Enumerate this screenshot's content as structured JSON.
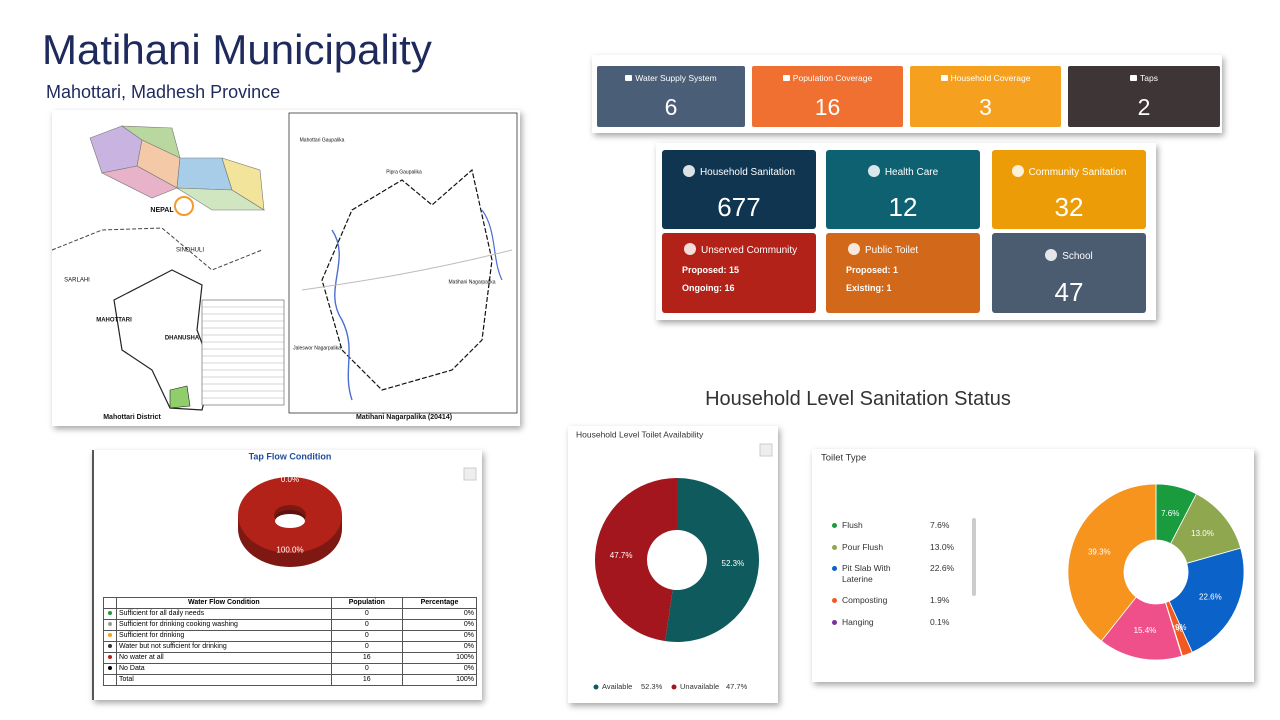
{
  "header": {
    "title": "Matihani Municipality",
    "subtitle": "Mahottari, Madhesh Province"
  },
  "map": {
    "labels": [
      "NEPAL",
      "SINDHULI",
      "SARLAHI",
      "MAHOTTARI",
      "DHANUSHA",
      "Mahottari District",
      "Matihani Nagarpalika (20414)",
      "Pipra Gaupalika",
      "Jaleswor Nagarpalika",
      "Matihani Nagarpalika",
      "Mahottari Gaupalika"
    ]
  },
  "summary": {
    "items": [
      {
        "label": "Water Supply System",
        "value": 6,
        "color": "#4a5e78"
      },
      {
        "label": "Population Coverage",
        "value": 16,
        "color": "#ef7030"
      },
      {
        "label": "Household Coverage",
        "value": 3,
        "color": "#f5a11f"
      },
      {
        "label": "Taps",
        "value": 2,
        "color": "#3d3536"
      }
    ]
  },
  "sanitation": {
    "items": [
      {
        "label": "Household Sanitation",
        "value": 677,
        "color": "#0f3550"
      },
      {
        "label": "Health Care",
        "value": 12,
        "color": "#0d6171"
      },
      {
        "label": "Community Sanitation",
        "value": 32,
        "color": "#ec9c07"
      },
      {
        "label": "Unserved Community",
        "color": "#b22219",
        "details": [
          {
            "label": "Proposed:",
            "value": 15
          },
          {
            "label": "Ongoing:",
            "value": 16
          }
        ]
      },
      {
        "label": "Public Toilet",
        "color": "#d2691a",
        "details": [
          {
            "label": "Proposed:",
            "value": 1
          },
          {
            "label": "Existing:",
            "value": 1
          }
        ]
      },
      {
        "label": "School",
        "value": 47,
        "color": "#4b5b70"
      }
    ]
  },
  "section_title": "Household Level Sanitation Status",
  "chart_data": [
    {
      "type": "pie",
      "title": "Tap Flow Condition",
      "categories": [
        "Sufficient for all daily needs",
        "Sufficient for drinking cooking washing",
        "Sufficient for drinking",
        "Water but not sufficient for drinking",
        "No water at all",
        "No Data"
      ],
      "values": [
        0,
        0,
        0,
        0,
        100,
        0
      ],
      "value_labels": [
        null,
        null,
        null,
        null,
        "100.0%",
        "0.0%"
      ],
      "colors": [
        "#1a9c3e",
        "#9a9a9a",
        "#f5a11f",
        "#333333",
        "#b22219",
        "#000000"
      ],
      "table": {
        "columns": [
          "Water Flow Condition",
          "Population",
          "Percentage"
        ],
        "population": [
          0,
          0,
          0,
          0,
          16,
          0
        ],
        "percentages": [
          "0%",
          "0%",
          "0%",
          "0%",
          "100%",
          "0%"
        ],
        "total_label": "Total",
        "total_population": 16,
        "total_percentage": "100%"
      }
    },
    {
      "type": "pie",
      "title": "Household Level Toilet Availability",
      "categories": [
        "Available",
        "Unavailable"
      ],
      "values": [
        52.3,
        47.7
      ],
      "value_labels": [
        "52.3%",
        "47.7%"
      ],
      "colors": [
        "#0e5a5c",
        "#a3161d"
      ]
    },
    {
      "type": "pie",
      "title": "Toilet Type",
      "categories": [
        "Flush",
        "Pour Flush",
        "Pit Slab With Laterine",
        "Composting",
        "Hanging",
        null,
        null
      ],
      "values": [
        7.6,
        13.0,
        22.6,
        1.9,
        0.1,
        15.4,
        39.3
      ],
      "value_labels": [
        "7.6%",
        "13.0%",
        "22.6%",
        "1.9%",
        "0.1%",
        "15.4%",
        "39.3%"
      ],
      "colors": [
        "#1a9c3e",
        "#8fa84f",
        "#0b62c9",
        "#f05a22",
        "#7a2fa3",
        "#f0508a",
        "#f7941d"
      ]
    }
  ]
}
